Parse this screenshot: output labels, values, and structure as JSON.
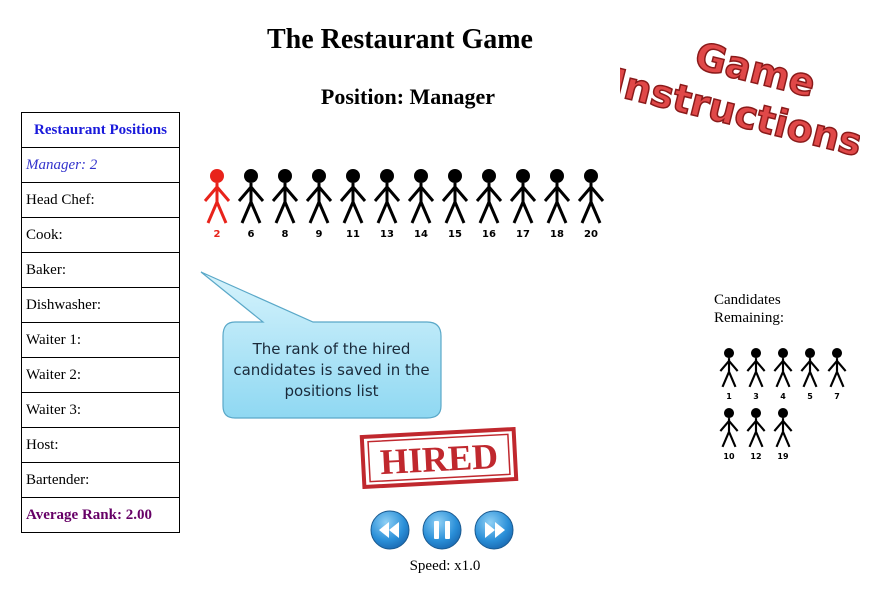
{
  "title": "The Restaurant Game",
  "position_label": "Position: Manager",
  "instructions_label_line1": "Game",
  "instructions_label_line2": "Instructions",
  "positions_table": {
    "header": "Restaurant Positions",
    "rows": [
      {
        "text": "Manager: 2",
        "filled": true
      },
      {
        "text": "Head Chef:",
        "filled": false
      },
      {
        "text": "Cook:",
        "filled": false
      },
      {
        "text": "Baker:",
        "filled": false
      },
      {
        "text": "Dishwasher:",
        "filled": false
      },
      {
        "text": "Waiter 1:",
        "filled": false
      },
      {
        "text": "Waiter 2:",
        "filled": false
      },
      {
        "text": "Waiter 3:",
        "filled": false
      },
      {
        "text": "Host:",
        "filled": false
      },
      {
        "text": "Bartender:",
        "filled": false
      }
    ],
    "average": "Average Rank: 2.00"
  },
  "lineup": {
    "hired": "2",
    "candidates": [
      "6",
      "8",
      "9",
      "11",
      "13",
      "14",
      "15",
      "16",
      "17",
      "18",
      "20"
    ]
  },
  "callout_text": "The rank of the hired candidates is saved in the positions list",
  "stamp_text": "HIRED",
  "controls": {
    "speed": "Speed: x1.0"
  },
  "remaining": {
    "label_line1": "Candidates",
    "label_line2": "Remaining:",
    "row1": [
      "1",
      "3",
      "4",
      "5",
      "7"
    ],
    "row2": [
      "10",
      "12",
      "19"
    ]
  },
  "colors": {
    "hired": "#e8231b",
    "stamp": "#c0282e",
    "instructions": "#e04848",
    "button": "#2a8fd8",
    "callout": "#aee6f8"
  }
}
